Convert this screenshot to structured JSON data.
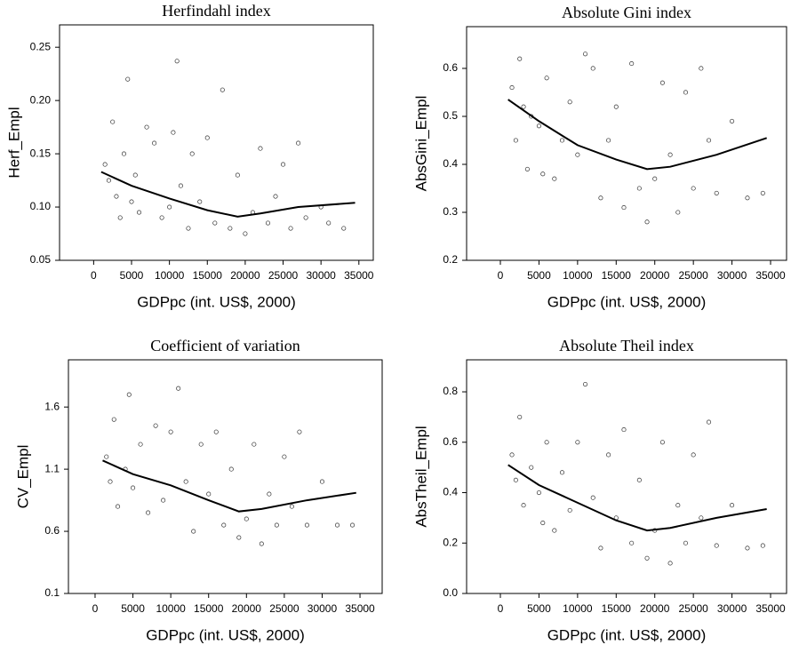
{
  "chart_data": [
    {
      "type": "scatter",
      "title": "Herfindahl index",
      "xlabel": "GDPpc (int. US$, 2000)",
      "ylabel": "Herf_Empl",
      "color": "#333333",
      "xlim": [
        -4500,
        36900
      ],
      "ylim": [
        0.05,
        0.271
      ],
      "xticks": [
        0,
        5000,
        10000,
        15000,
        20000,
        25000,
        30000,
        35000
      ],
      "yticks": [
        {
          "value": 0.05,
          "label": "0.05"
        },
        {
          "value": 0.1,
          "label": "0.10"
        },
        {
          "value": 0.15,
          "label": "0.15"
        },
        {
          "value": 0.2,
          "label": "0.20"
        },
        {
          "value": 0.25,
          "label": "0.25"
        }
      ],
      "x": [
        1500,
        2000,
        2500,
        3000,
        3500,
        4000,
        4500,
        5000,
        5500,
        6000,
        7000,
        8000,
        9000,
        10000,
        10500,
        11000,
        11500,
        12500,
        13000,
        14000,
        15000,
        16000,
        17000,
        18000,
        19000,
        20000,
        21000,
        22000,
        23000,
        24000,
        25000,
        26000,
        27000,
        28000,
        30000,
        31000,
        33000
      ],
      "values": [
        0.14,
        0.125,
        0.18,
        0.11,
        0.09,
        0.15,
        0.22,
        0.105,
        0.13,
        0.095,
        0.175,
        0.16,
        0.09,
        0.1,
        0.17,
        0.237,
        0.12,
        0.08,
        0.15,
        0.105,
        0.165,
        0.085,
        0.21,
        0.08,
        0.13,
        0.075,
        0.095,
        0.155,
        0.085,
        0.11,
        0.14,
        0.08,
        0.16,
        0.09,
        0.1,
        0.085,
        0.08
      ],
      "fit": {
        "x": [
          1000,
          5000,
          10000,
          15000,
          19000,
          22000,
          27000,
          34500
        ],
        "values": [
          0.133,
          0.12,
          0.108,
          0.097,
          0.091,
          0.094,
          0.1,
          0.104
        ]
      }
    },
    {
      "type": "scatter",
      "title": "Absolute Gini index",
      "xlabel": "GDPpc (int. US$, 2000)",
      "ylabel": "AbsGini_Empl",
      "color": "#333333",
      "xlim": [
        -4375,
        37070
      ],
      "ylim": [
        0.2,
        0.687
      ],
      "xticks": [
        0,
        5000,
        10000,
        15000,
        20000,
        25000,
        30000,
        35000
      ],
      "yticks": [
        0.2,
        0.3,
        0.4,
        0.5,
        0.6
      ],
      "x": [
        1500,
        2000,
        2500,
        3000,
        3500,
        4000,
        5000,
        5500,
        6000,
        7000,
        8000,
        9000,
        10000,
        11000,
        12000,
        13000,
        14000,
        15000,
        16000,
        17000,
        18000,
        19000,
        20000,
        21000,
        22000,
        23000,
        24000,
        25000,
        26000,
        27000,
        28000,
        30000,
        32000,
        34000
      ],
      "values": [
        0.56,
        0.45,
        0.62,
        0.52,
        0.39,
        0.5,
        0.48,
        0.38,
        0.58,
        0.37,
        0.45,
        0.53,
        0.42,
        0.63,
        0.6,
        0.33,
        0.45,
        0.52,
        0.31,
        0.61,
        0.35,
        0.28,
        0.37,
        0.57,
        0.42,
        0.3,
        0.55,
        0.35,
        0.6,
        0.45,
        0.34,
        0.49,
        0.33,
        0.34
      ],
      "fit": {
        "x": [
          1000,
          5000,
          10000,
          15000,
          19000,
          22000,
          28000,
          34500
        ],
        "values": [
          0.535,
          0.49,
          0.44,
          0.41,
          0.39,
          0.395,
          0.42,
          0.455
        ]
      }
    },
    {
      "type": "scatter",
      "title": "Coefficient of variation",
      "xlabel": "GDPpc (int. US$, 2000)",
      "ylabel": "CV_Empl",
      "color": "#333333",
      "xlim": [
        -3520,
        37930
      ],
      "ylim": [
        0.1,
        1.98
      ],
      "xticks": [
        0,
        5000,
        10000,
        15000,
        20000,
        25000,
        30000,
        35000
      ],
      "yticks": [
        0.1,
        0.6,
        1.1,
        1.6
      ],
      "x": [
        1500,
        2000,
        2500,
        3000,
        4000,
        4500,
        5000,
        6000,
        7000,
        8000,
        9000,
        10000,
        11000,
        12000,
        13000,
        14000,
        15000,
        16000,
        17000,
        18000,
        19000,
        20000,
        21000,
        22000,
        23000,
        24000,
        25000,
        26000,
        27000,
        28000,
        30000,
        32000,
        34000
      ],
      "values": [
        1.2,
        1.0,
        1.5,
        0.8,
        1.1,
        1.7,
        0.95,
        1.3,
        0.75,
        1.45,
        0.85,
        1.4,
        1.75,
        1.0,
        0.6,
        1.3,
        0.9,
        1.4,
        0.65,
        1.1,
        0.55,
        0.7,
        1.3,
        0.5,
        0.9,
        0.65,
        1.2,
        0.8,
        1.4,
        0.65,
        1.0,
        0.65,
        0.65
      ],
      "fit": {
        "x": [
          1000,
          5000,
          10000,
          15000,
          19000,
          22000,
          28000,
          34500
        ],
        "values": [
          1.17,
          1.06,
          0.97,
          0.85,
          0.76,
          0.78,
          0.85,
          0.91
        ]
      }
    },
    {
      "type": "scatter",
      "title": "Absolute Theil index",
      "xlabel": "GDPpc (int. US$, 2000)",
      "ylabel": "AbsTheil_Empl",
      "color": "#333333",
      "xlim": [
        -4375,
        37070
      ],
      "ylim": [
        0.0,
        0.927
      ],
      "xticks": [
        0,
        5000,
        10000,
        15000,
        20000,
        25000,
        30000,
        35000
      ],
      "yticks": [
        {
          "value": 0.0,
          "label": "0.0"
        },
        0.2,
        0.4,
        0.6,
        0.8
      ],
      "x": [
        1500,
        2000,
        2500,
        3000,
        4000,
        5000,
        5500,
        6000,
        7000,
        8000,
        9000,
        10000,
        11000,
        12000,
        13000,
        14000,
        15000,
        16000,
        17000,
        18000,
        19000,
        20000,
        21000,
        22000,
        23000,
        24000,
        25000,
        26000,
        27000,
        28000,
        30000,
        32000,
        34000
      ],
      "values": [
        0.55,
        0.45,
        0.7,
        0.35,
        0.5,
        0.4,
        0.28,
        0.6,
        0.25,
        0.48,
        0.33,
        0.6,
        0.83,
        0.38,
        0.18,
        0.55,
        0.3,
        0.65,
        0.2,
        0.45,
        0.14,
        0.25,
        0.6,
        0.12,
        0.35,
        0.2,
        0.55,
        0.3,
        0.68,
        0.19,
        0.35,
        0.18,
        0.19
      ],
      "fit": {
        "x": [
          1000,
          5000,
          10000,
          15000,
          19000,
          22000,
          28000,
          34500
        ],
        "values": [
          0.51,
          0.43,
          0.36,
          0.29,
          0.25,
          0.26,
          0.3,
          0.335
        ]
      }
    }
  ]
}
